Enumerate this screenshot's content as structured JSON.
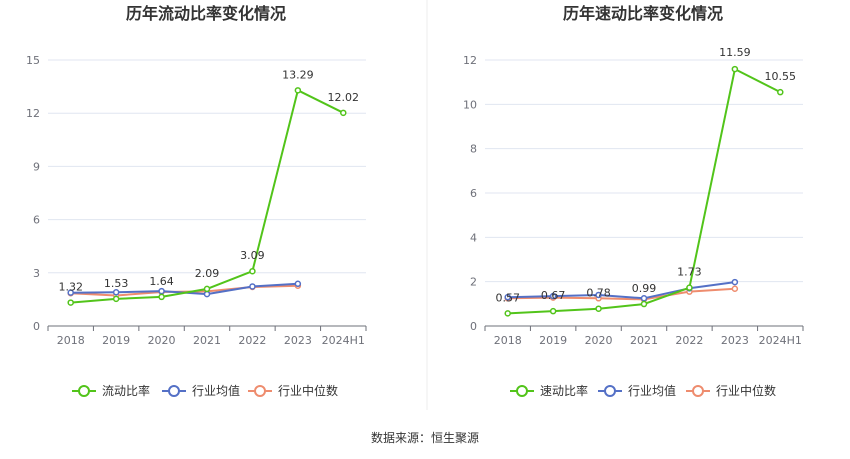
{
  "source": "数据来源：恒生聚源",
  "colors": {
    "main": "#52c41a",
    "avg": "#5470c6",
    "median": "#ee8c6e"
  },
  "chart_data": [
    {
      "type": "line",
      "title": "历年流动比率变化情况",
      "categories": [
        "2018",
        "2019",
        "2020",
        "2021",
        "2022",
        "2023",
        "2024H1"
      ],
      "ylim": [
        0,
        15
      ],
      "yticks": [
        0,
        3,
        6,
        9,
        12,
        15
      ],
      "grid": true,
      "legend_position": "bottom",
      "series": [
        {
          "name": "流动比率",
          "values": [
            1.32,
            1.53,
            1.64,
            2.09,
            3.09,
            13.29,
            12.02
          ],
          "labels": [
            "1.32",
            "1.53",
            "1.64",
            "2.09",
            "3.09",
            "13.29",
            "12.02"
          ]
        },
        {
          "name": "行业均值",
          "values": [
            1.88,
            1.9,
            1.97,
            1.8,
            2.23,
            2.38,
            null
          ]
        },
        {
          "name": "行业中位数",
          "values": [
            1.85,
            1.72,
            1.92,
            1.95,
            2.2,
            2.27,
            null
          ]
        }
      ]
    },
    {
      "type": "line",
      "title": "历年速动比率变化情况",
      "categories": [
        "2018",
        "2019",
        "2020",
        "2021",
        "2022",
        "2023",
        "2024H1"
      ],
      "ylim": [
        0,
        12
      ],
      "yticks": [
        0,
        2,
        4,
        6,
        8,
        10,
        12
      ],
      "grid": true,
      "legend_position": "bottom",
      "series": [
        {
          "name": "速动比率",
          "values": [
            0.57,
            0.67,
            0.78,
            0.99,
            1.73,
            11.59,
            10.55
          ],
          "labels": [
            "0.57",
            "0.67",
            "0.78",
            "0.99",
            "1.73",
            "11.59",
            "10.55"
          ]
        },
        {
          "name": "行业均值",
          "values": [
            1.3,
            1.35,
            1.4,
            1.25,
            1.7,
            1.98,
            null
          ]
        },
        {
          "name": "行业中位数",
          "values": [
            1.25,
            1.28,
            1.25,
            1.2,
            1.55,
            1.68,
            null
          ]
        }
      ]
    }
  ]
}
